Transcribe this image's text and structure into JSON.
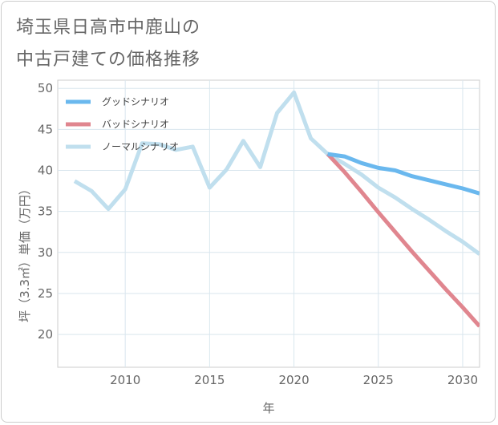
{
  "chart_data": {
    "type": "line",
    "title_line1": "埼玉県日高市中鹿山の",
    "title_line2": "中古戸建ての価格推移",
    "xlabel": "年",
    "ylabel": "坪（3.3㎡）単価（万円）",
    "xlim": [
      2006,
      2031
    ],
    "ylim": [
      16,
      51
    ],
    "xticks": [
      2010,
      2015,
      2020,
      2025,
      2030
    ],
    "yticks": [
      20,
      25,
      30,
      35,
      40,
      45,
      50
    ],
    "legend_position": "top-left",
    "series": [
      {
        "name": "グッドシナリオ",
        "color": "#6ab8ee",
        "x": [
          2022,
          2023,
          2024,
          2025,
          2026,
          2027,
          2028,
          2029,
          2030,
          2031
        ],
        "y": [
          42.0,
          41.7,
          40.9,
          40.3,
          40.0,
          39.3,
          38.8,
          38.3,
          37.8,
          37.2
        ]
      },
      {
        "name": "バッドシナリオ",
        "color": "#e0868f",
        "x": [
          2022,
          2023,
          2024,
          2025,
          2026,
          2027,
          2028,
          2029,
          2030,
          2031
        ],
        "y": [
          42.0,
          39.8,
          37.4,
          34.9,
          32.5,
          30.1,
          27.8,
          25.5,
          23.3,
          21.0
        ]
      },
      {
        "name": "ノーマルシナリオ",
        "color": "#c0dfee",
        "x": [
          2007,
          2008,
          2009,
          2010,
          2011,
          2012,
          2013,
          2014,
          2015,
          2016,
          2017,
          2018,
          2019,
          2020,
          2021,
          2022,
          2023,
          2024,
          2025,
          2026,
          2027,
          2028,
          2029,
          2030,
          2031
        ],
        "y": [
          38.7,
          37.5,
          35.3,
          37.7,
          43.3,
          43.2,
          42.5,
          42.9,
          37.9,
          40.1,
          43.6,
          40.4,
          47.0,
          49.5,
          43.9,
          42.0,
          40.8,
          39.5,
          37.9,
          36.7,
          35.3,
          34.0,
          32.6,
          31.3,
          29.8
        ]
      }
    ]
  }
}
